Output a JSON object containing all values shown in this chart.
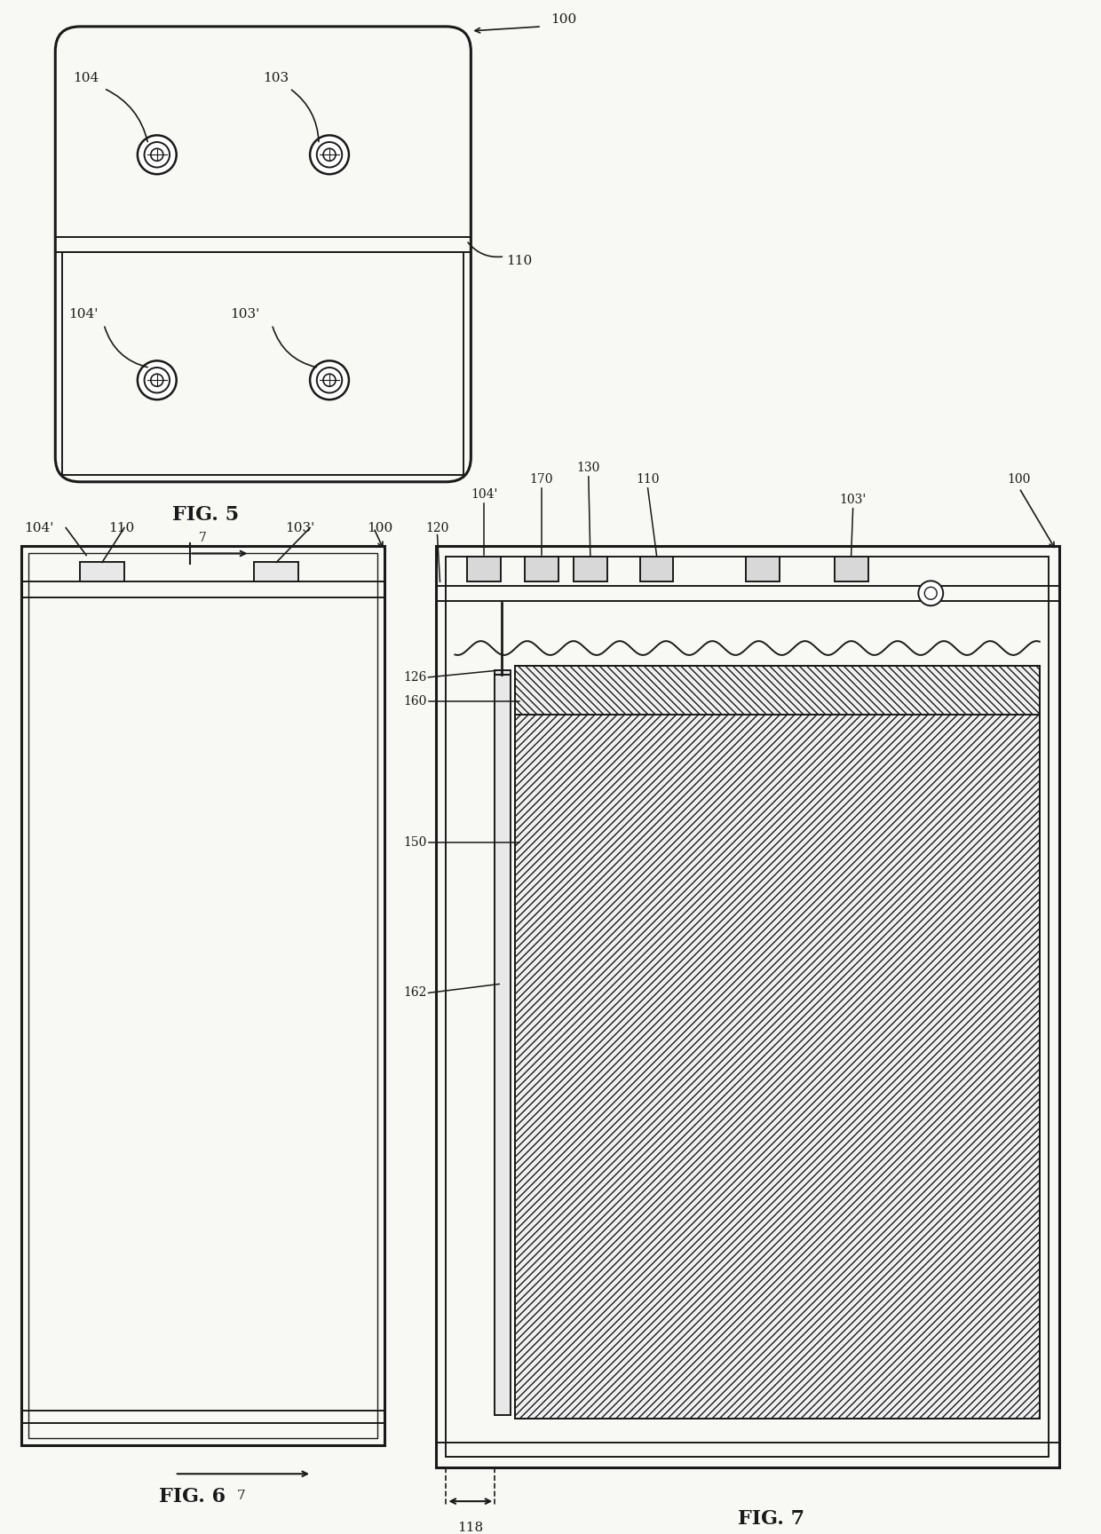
{
  "bg_color": "#f8f8f4",
  "line_color": "#1a1a1a",
  "fig5_label": "FIG. 5",
  "fig6_label": "FIG. 6",
  "fig7_label": "FIG. 7"
}
